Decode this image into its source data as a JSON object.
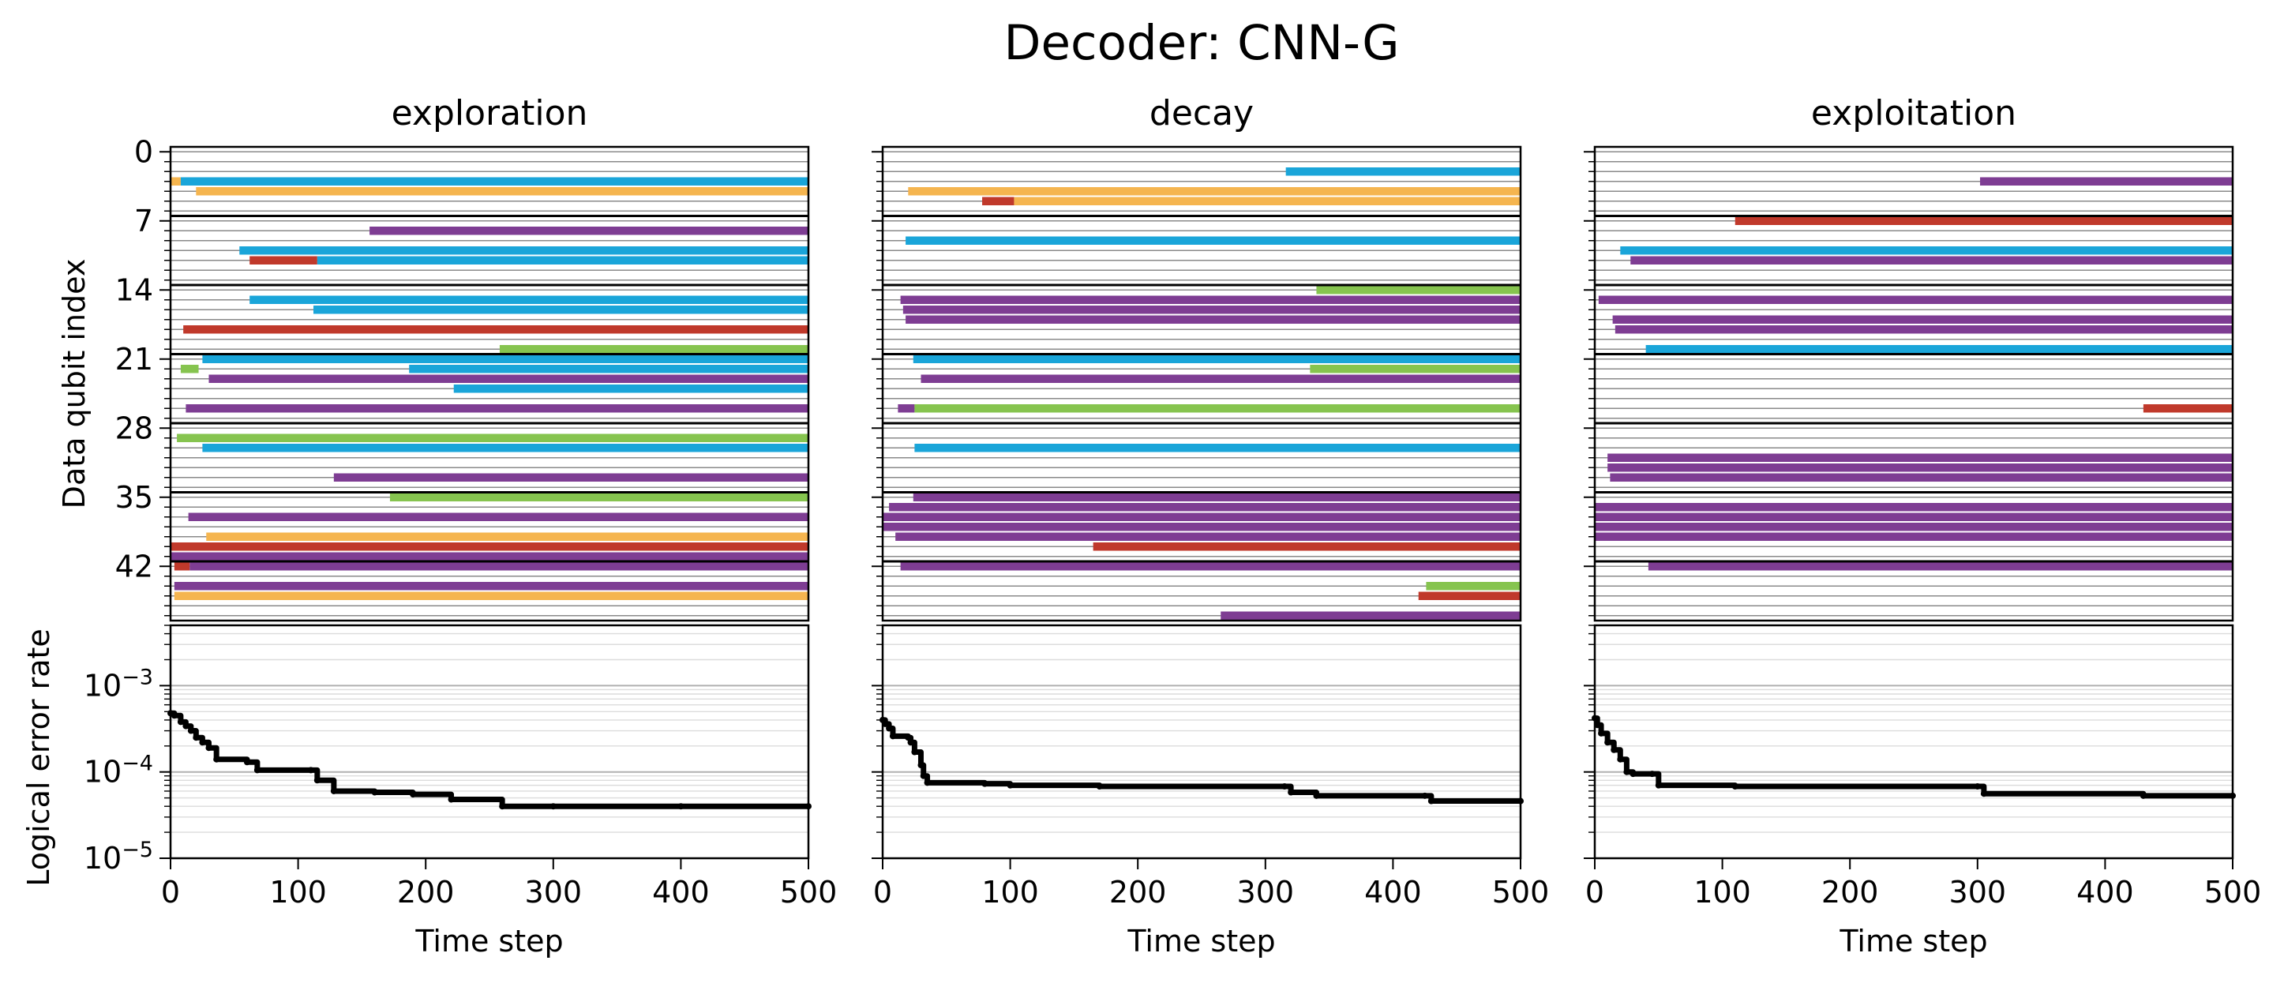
{
  "title": "Decoder: CNN-G",
  "colors": {
    "blue": "#1aa5d9",
    "orange": "#f5b54f",
    "purple": "#7e3d93",
    "green": "#86c44f",
    "red": "#c0392b"
  },
  "chart_data": [
    {
      "type": "line",
      "title": "exploration",
      "xlabel": "Time step",
      "ylabel_top": "Data qubit index",
      "ylabel_bottom": "Logical error rate",
      "x_ticks": [
        "0",
        "100",
        "200",
        "300",
        "400",
        "500"
      ],
      "xlim": [
        0,
        500
      ],
      "qubit_ylim": [
        -0.5,
        47.5
      ],
      "qubit_ticks": [
        "0",
        "7",
        "14",
        "21",
        "28",
        "35",
        "42"
      ],
      "qubit_group_boundaries": [
        6.5,
        13.5,
        20.5,
        27.5,
        34.5,
        41.5
      ],
      "ler_scale": "log",
      "ler_ylim": [
        1e-05,
        0.005
      ],
      "ler_ticks": [
        "10^-5",
        "10^-4",
        "10^-3"
      ],
      "segments": [
        {
          "q": 3,
          "start": 0,
          "end": 8,
          "color": "orange"
        },
        {
          "q": 3,
          "start": 8,
          "end": 500,
          "color": "blue"
        },
        {
          "q": 4,
          "start": 20,
          "end": 500,
          "color": "orange"
        },
        {
          "q": 8,
          "start": 156,
          "end": 500,
          "color": "purple"
        },
        {
          "q": 10,
          "start": 54,
          "end": 500,
          "color": "blue"
        },
        {
          "q": 11,
          "start": 62,
          "end": 115,
          "color": "red"
        },
        {
          "q": 11,
          "start": 115,
          "end": 500,
          "color": "blue"
        },
        {
          "q": 15,
          "start": 62,
          "end": 500,
          "color": "blue"
        },
        {
          "q": 16,
          "start": 112,
          "end": 500,
          "color": "blue"
        },
        {
          "q": 18,
          "start": 10,
          "end": 500,
          "color": "red"
        },
        {
          "q": 20,
          "start": 258,
          "end": 500,
          "color": "green"
        },
        {
          "q": 21,
          "start": 25,
          "end": 500,
          "color": "blue"
        },
        {
          "q": 22,
          "start": 8,
          "end": 22,
          "color": "green"
        },
        {
          "q": 22,
          "start": 187,
          "end": 500,
          "color": "blue"
        },
        {
          "q": 23,
          "start": 30,
          "end": 500,
          "color": "purple"
        },
        {
          "q": 24,
          "start": 222,
          "end": 500,
          "color": "blue"
        },
        {
          "q": 26,
          "start": 12,
          "end": 500,
          "color": "purple"
        },
        {
          "q": 29,
          "start": 5,
          "end": 500,
          "color": "green"
        },
        {
          "q": 30,
          "start": 25,
          "end": 500,
          "color": "blue"
        },
        {
          "q": 33,
          "start": 128,
          "end": 500,
          "color": "purple"
        },
        {
          "q": 35,
          "start": 172,
          "end": 500,
          "color": "green"
        },
        {
          "q": 37,
          "start": 14,
          "end": 500,
          "color": "purple"
        },
        {
          "q": 39,
          "start": 28,
          "end": 500,
          "color": "orange"
        },
        {
          "q": 40,
          "start": 0,
          "end": 500,
          "color": "red"
        },
        {
          "q": 41,
          "start": 0,
          "end": 500,
          "color": "purple"
        },
        {
          "q": 42,
          "start": 3,
          "end": 15,
          "color": "red"
        },
        {
          "q": 42,
          "start": 15,
          "end": 500,
          "color": "purple"
        },
        {
          "q": 44,
          "start": 3,
          "end": 500,
          "color": "purple"
        },
        {
          "q": 45,
          "start": 3,
          "end": 500,
          "color": "orange"
        }
      ],
      "ler_x": [
        0,
        3,
        8,
        12,
        16,
        20,
        25,
        30,
        36,
        60,
        68,
        110,
        115,
        128,
        160,
        190,
        220,
        260,
        300,
        400,
        500
      ],
      "ler_y": [
        0.00048,
        0.00045,
        0.00038,
        0.00034,
        0.0003,
        0.00025,
        0.00022,
        0.00019,
        0.00014,
        0.00013,
        0.000105,
        0.000105,
        8e-05,
        6e-05,
        5.8e-05,
        5.5e-05,
        4.8e-05,
        4e-05,
        4e-05,
        4e-05,
        4e-05
      ]
    },
    {
      "type": "line",
      "title": "decay",
      "xlabel": "Time step",
      "x_ticks": [
        "0",
        "100",
        "200",
        "300",
        "400",
        "500"
      ],
      "xlim": [
        0,
        500
      ],
      "qubit_ylim": [
        -0.5,
        47.5
      ],
      "qubit_group_boundaries": [
        6.5,
        13.5,
        20.5,
        27.5,
        34.5,
        41.5
      ],
      "ler_scale": "log",
      "ler_ylim": [
        1e-05,
        0.005
      ],
      "segments": [
        {
          "q": 2,
          "start": 316,
          "end": 500,
          "color": "blue"
        },
        {
          "q": 4,
          "start": 20,
          "end": 500,
          "color": "orange"
        },
        {
          "q": 5,
          "start": 78,
          "end": 103,
          "color": "red"
        },
        {
          "q": 5,
          "start": 103,
          "end": 500,
          "color": "orange"
        },
        {
          "q": 9,
          "start": 18,
          "end": 500,
          "color": "blue"
        },
        {
          "q": 14,
          "start": 340,
          "end": 500,
          "color": "green"
        },
        {
          "q": 15,
          "start": 14,
          "end": 500,
          "color": "purple"
        },
        {
          "q": 16,
          "start": 16,
          "end": 500,
          "color": "purple"
        },
        {
          "q": 17,
          "start": 18,
          "end": 500,
          "color": "purple"
        },
        {
          "q": 21,
          "start": 24,
          "end": 500,
          "color": "blue"
        },
        {
          "q": 22,
          "start": 335,
          "end": 500,
          "color": "green"
        },
        {
          "q": 23,
          "start": 30,
          "end": 500,
          "color": "purple"
        },
        {
          "q": 26,
          "start": 12,
          "end": 25,
          "color": "purple"
        },
        {
          "q": 26,
          "start": 25,
          "end": 500,
          "color": "green"
        },
        {
          "q": 30,
          "start": 25,
          "end": 500,
          "color": "blue"
        },
        {
          "q": 35,
          "start": 24,
          "end": 500,
          "color": "purple"
        },
        {
          "q": 36,
          "start": 5,
          "end": 500,
          "color": "purple"
        },
        {
          "q": 37,
          "start": 0,
          "end": 500,
          "color": "purple"
        },
        {
          "q": 38,
          "start": 0,
          "end": 500,
          "color": "purple"
        },
        {
          "q": 39,
          "start": 10,
          "end": 500,
          "color": "purple"
        },
        {
          "q": 40,
          "start": 165,
          "end": 500,
          "color": "red"
        },
        {
          "q": 42,
          "start": 14,
          "end": 500,
          "color": "purple"
        },
        {
          "q": 44,
          "start": 426,
          "end": 500,
          "color": "green"
        },
        {
          "q": 45,
          "start": 420,
          "end": 500,
          "color": "red"
        },
        {
          "q": 47,
          "start": 265,
          "end": 500,
          "color": "purple"
        }
      ],
      "ler_x": [
        0,
        2,
        5,
        8,
        20,
        22,
        25,
        30,
        32,
        35,
        80,
        100,
        170,
        315,
        320,
        340,
        425,
        430,
        500
      ],
      "ler_y": [
        0.0004,
        0.00036,
        0.00032,
        0.00026,
        0.00025,
        0.00022,
        0.00017,
        0.00012,
        9e-05,
        7.5e-05,
        7.3e-05,
        7e-05,
        6.8e-05,
        6.8e-05,
        5.8e-05,
        5.3e-05,
        5.3e-05,
        4.6e-05,
        4.6e-05
      ]
    },
    {
      "type": "line",
      "title": "exploitation",
      "xlabel": "Time step",
      "x_ticks": [
        "0",
        "100",
        "200",
        "300",
        "400",
        "500"
      ],
      "xlim": [
        0,
        500
      ],
      "qubit_ylim": [
        -0.5,
        47.5
      ],
      "qubit_group_boundaries": [
        6.5,
        13.5,
        20.5,
        27.5,
        34.5,
        41.5
      ],
      "ler_scale": "log",
      "ler_ylim": [
        1e-05,
        0.005
      ],
      "segments": [
        {
          "q": 3,
          "start": 302,
          "end": 500,
          "color": "purple"
        },
        {
          "q": 7,
          "start": 110,
          "end": 500,
          "color": "red"
        },
        {
          "q": 10,
          "start": 20,
          "end": 500,
          "color": "blue"
        },
        {
          "q": 11,
          "start": 28,
          "end": 500,
          "color": "purple"
        },
        {
          "q": 15,
          "start": 3,
          "end": 500,
          "color": "purple"
        },
        {
          "q": 17,
          "start": 14,
          "end": 500,
          "color": "purple"
        },
        {
          "q": 18,
          "start": 16,
          "end": 500,
          "color": "purple"
        },
        {
          "q": 20,
          "start": 40,
          "end": 500,
          "color": "blue"
        },
        {
          "q": 26,
          "start": 430,
          "end": 500,
          "color": "red"
        },
        {
          "q": 31,
          "start": 10,
          "end": 500,
          "color": "purple"
        },
        {
          "q": 32,
          "start": 10,
          "end": 500,
          "color": "purple"
        },
        {
          "q": 33,
          "start": 12,
          "end": 500,
          "color": "purple"
        },
        {
          "q": 36,
          "start": 0,
          "end": 500,
          "color": "purple"
        },
        {
          "q": 37,
          "start": 0,
          "end": 500,
          "color": "purple"
        },
        {
          "q": 38,
          "start": 0,
          "end": 500,
          "color": "purple"
        },
        {
          "q": 39,
          "start": 0,
          "end": 500,
          "color": "purple"
        },
        {
          "q": 42,
          "start": 42,
          "end": 500,
          "color": "purple"
        }
      ],
      "ler_x": [
        0,
        2,
        5,
        10,
        15,
        20,
        25,
        30,
        45,
        50,
        110,
        300,
        305,
        430,
        500
      ],
      "ler_y": [
        0.00042,
        0.00035,
        0.00028,
        0.00022,
        0.00018,
        0.00014,
        0.0001,
        9.5e-05,
        9.5e-05,
        7e-05,
        6.8e-05,
        6.8e-05,
        5.6e-05,
        5.3e-05,
        5.3e-05
      ]
    }
  ]
}
